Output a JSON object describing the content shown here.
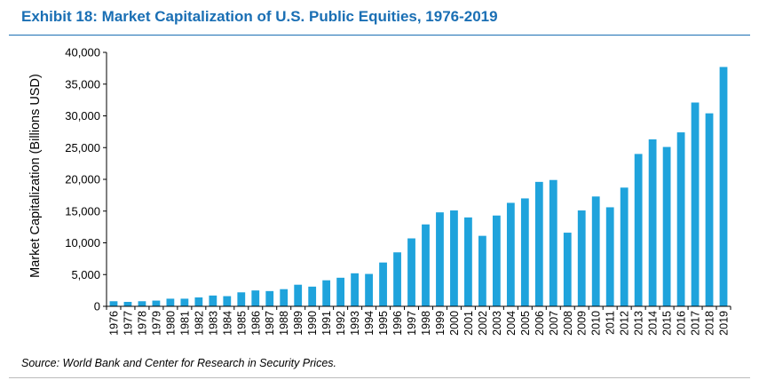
{
  "title": "Exhibit 18: Market Capitalization of U.S. Public Equities, 1976-2019",
  "source": "Source: World Bank and Center for Research in Security Prices.",
  "colors": {
    "bar": "#1fa3dc",
    "title": "#1a6fb4",
    "axis": "#000000"
  },
  "chart_data": {
    "type": "bar",
    "title": "Exhibit 18: Market Capitalization of U.S. Public Equities, 1976-2019",
    "xlabel": "",
    "ylabel": "Market Capitalization (Billions USD)",
    "ylim": [
      0,
      40000
    ],
    "yticks": [
      0,
      5000,
      10000,
      15000,
      20000,
      25000,
      30000,
      35000,
      40000
    ],
    "ytick_labels": [
      "0",
      "5,000",
      "10,000",
      "15,000",
      "20,000",
      "25,000",
      "30,000",
      "35,000",
      "40,000"
    ],
    "grid": false,
    "legend": "none",
    "categories": [
      "1976",
      "1977",
      "1978",
      "1979",
      "1980",
      "1981",
      "1982",
      "1983",
      "1984",
      "1985",
      "1986",
      "1987",
      "1988",
      "1989",
      "1990",
      "1991",
      "1992",
      "1993",
      "1994",
      "1995",
      "1996",
      "1997",
      "1998",
      "1999",
      "2000",
      "2001",
      "2002",
      "2003",
      "2004",
      "2005",
      "2006",
      "2007",
      "2008",
      "2009",
      "2010",
      "2011",
      "2012",
      "2013",
      "2014",
      "2015",
      "2016",
      "2017",
      "2018",
      "2019"
    ],
    "values": [
      800,
      700,
      800,
      900,
      1200,
      1200,
      1400,
      1700,
      1600,
      2200,
      2500,
      2400,
      2700,
      3400,
      3100,
      4100,
      4500,
      5200,
      5100,
      6900,
      8500,
      10700,
      12900,
      14800,
      15100,
      14000,
      11100,
      14300,
      16300,
      17000,
      19600,
      19900,
      11600,
      15100,
      17300,
      15600,
      18700,
      24000,
      26300,
      25100,
      27400,
      32100,
      30400,
      37700
    ]
  }
}
